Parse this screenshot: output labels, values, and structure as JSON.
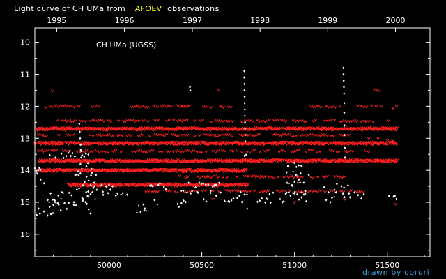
{
  "chart_data": {
    "type": "scatter",
    "title": {
      "prefix": "Light curve of CH UMa from",
      "highlight": "AFOEV",
      "suffix": "observations"
    },
    "subtitle": "CH UMa (UGSS)",
    "credit": "drawn by ooruri",
    "colors": {
      "background": "#000000",
      "axes": "#ffffff",
      "highlight": "#ffff00",
      "positive_obs": "#ffffff",
      "fainter_than_obs": "#ff2020",
      "credit": "#39a7e6"
    },
    "x_axis": {
      "label": "",
      "range": [
        49600,
        51730
      ],
      "ticks": [
        50000,
        50500,
        51000,
        51500
      ],
      "tick_labels": [
        "50000",
        "50500",
        "51000",
        "51500"
      ]
    },
    "top_axis": {
      "label": "",
      "ticks": [
        49718,
        50083,
        50449,
        50814,
        51179,
        51544
      ],
      "tick_labels": [
        "1995",
        "1996",
        "1997",
        "1998",
        "1999",
        "2000"
      ]
    },
    "y_axis": {
      "label": "",
      "inverted": true,
      "range": [
        9.55,
        16.7
      ],
      "ticks": [
        10,
        11,
        12,
        13,
        14,
        15,
        16
      ],
      "tick_labels": [
        "10",
        "11",
        "12",
        "13",
        "14",
        "15",
        "16"
      ]
    },
    "grid": false,
    "legend": "none",
    "series": [
      {
        "kind": "fainter-than",
        "marker": "v",
        "bands": [
          {
            "mag": 12.7,
            "x": [
              49610,
              51555
            ]
          },
          {
            "mag": 13.15,
            "x": [
              49600,
              51555
            ]
          },
          {
            "mag": 13.7,
            "x": [
              49620,
              51555
            ]
          },
          {
            "mag": 14.0,
            "x": [
              49620,
              50740
            ]
          },
          {
            "mag": 14.45,
            "x": [
              49780,
              50750
            ]
          }
        ],
        "clusters": [
          {
            "mag": 11.5,
            "x": [
              49680,
              49710
            ]
          },
          {
            "mag": 11.5,
            "x": [
              50580,
              50610
            ]
          },
          {
            "mag": 11.5,
            "x": [
              51420,
              51460
            ]
          },
          {
            "mag": 12.0,
            "x": [
              49660,
              49960
            ]
          },
          {
            "mag": 12.0,
            "x": [
              50120,
              50440
            ]
          },
          {
            "mag": 12.0,
            "x": [
              50510,
              50670
            ]
          },
          {
            "mag": 12.0,
            "x": [
              51090,
              51250
            ]
          },
          {
            "mag": 12.0,
            "x": [
              51310,
              51440
            ]
          },
          {
            "mag": 12.45,
            "x": [
              49720,
              51520
            ]
          },
          {
            "mag": 12.9,
            "x": [
              49620,
              51300
            ]
          },
          {
            "mag": 13.4,
            "x": [
              49620,
              51400
            ]
          },
          {
            "mag": 14.2,
            "x": [
              50380,
              51280
            ]
          },
          {
            "mag": 14.65,
            "x": [
              50200,
              51420
            ]
          }
        ],
        "points": [
          {
            "x": 51440,
            "y": 12.0
          },
          {
            "x": 51470,
            "y": 12.0
          },
          {
            "x": 51530,
            "y": 12.05
          },
          {
            "x": 51550,
            "y": 12.0
          },
          {
            "x": 50400,
            "y": 12.0
          },
          {
            "x": 50600,
            "y": 12.0
          },
          {
            "x": 51400,
            "y": 13.0
          },
          {
            "x": 51450,
            "y": 13.0
          },
          {
            "x": 51500,
            "y": 13.05
          },
          {
            "x": 51530,
            "y": 13.05
          },
          {
            "x": 51545,
            "y": 15.05
          },
          {
            "x": 51000,
            "y": 15.0
          },
          {
            "x": 50560,
            "y": 14.9
          },
          {
            "x": 51270,
            "y": 14.9
          }
        ]
      },
      {
        "kind": "positive",
        "marker": "diamond",
        "clusters": [
          {
            "mag": 14.85,
            "x": [
              49650,
              50100
            ]
          },
          {
            "mag": 14.85,
            "x": [
              50450,
              50750
            ]
          },
          {
            "mag": 14.85,
            "x": [
              50800,
              51110
            ]
          },
          {
            "mag": 14.85,
            "x": [
              51170,
              51380
            ]
          },
          {
            "mag": 14.85,
            "x": [
              51500,
              51545
            ]
          },
          {
            "mag": 14.55,
            "x": [
              49800,
              50020
            ]
          },
          {
            "mag": 14.55,
            "x": [
              50210,
              50330
            ]
          },
          {
            "mag": 14.55,
            "x": [
              50390,
              50600
            ]
          },
          {
            "mag": 14.55,
            "x": [
              50960,
              51060
            ]
          },
          {
            "mag": 14.55,
            "x": [
              51150,
              51300
            ]
          },
          {
            "mag": 15.1,
            "x": [
              49700,
              49900
            ]
          },
          {
            "mag": 15.1,
            "x": [
              50160,
              50280
            ]
          },
          {
            "mag": 15.1,
            "x": [
              50370,
              50430
            ]
          },
          {
            "mag": 14.25,
            "x": [
              49600,
              49650
            ]
          },
          {
            "mag": 14.25,
            "x": [
              49800,
              49940
            ]
          },
          {
            "mag": 14.25,
            "x": [
              51000,
              51080
            ]
          },
          {
            "mag": 13.9,
            "x": [
              49600,
              49650
            ]
          },
          {
            "mag": 13.9,
            "x": [
              49820,
              49910
            ]
          },
          {
            "mag": 13.9,
            "x": [
              50950,
              51050
            ]
          },
          {
            "mag": 13.5,
            "x": [
              49680,
              49900
            ]
          },
          {
            "mag": 13.5,
            "x": [
              50730,
              50750
            ]
          },
          {
            "mag": 15.3,
            "x": [
              49620,
              49700
            ]
          },
          {
            "mag": 15.3,
            "x": [
              50150,
              50200
            ]
          }
        ],
        "points": [
          {
            "x": 50436,
            "y": 11.4
          },
          {
            "x": 50438,
            "y": 11.5
          },
          {
            "x": 50729,
            "y": 10.9
          },
          {
            "x": 50729,
            "y": 11.1
          },
          {
            "x": 50730,
            "y": 11.3
          },
          {
            "x": 50730,
            "y": 11.5
          },
          {
            "x": 50731,
            "y": 11.7
          },
          {
            "x": 50731,
            "y": 11.9
          },
          {
            "x": 50732,
            "y": 12.1
          },
          {
            "x": 50732,
            "y": 12.3
          },
          {
            "x": 50733,
            "y": 12.5
          },
          {
            "x": 50733,
            "y": 12.7
          },
          {
            "x": 50734,
            "y": 12.9
          },
          {
            "x": 50735,
            "y": 13.1
          },
          {
            "x": 51263,
            "y": 10.8
          },
          {
            "x": 51264,
            "y": 11.0
          },
          {
            "x": 51265,
            "y": 11.2
          },
          {
            "x": 51266,
            "y": 11.4
          },
          {
            "x": 51267,
            "y": 11.6
          },
          {
            "x": 51268,
            "y": 11.9
          },
          {
            "x": 51268,
            "y": 12.2
          },
          {
            "x": 51269,
            "y": 12.6
          },
          {
            "x": 51270,
            "y": 12.9
          },
          {
            "x": 51271,
            "y": 13.3
          },
          {
            "x": 51272,
            "y": 13.6
          },
          {
            "x": 49840,
            "y": 12.55
          },
          {
            "x": 49842,
            "y": 12.8
          },
          {
            "x": 49844,
            "y": 13.0
          },
          {
            "x": 49846,
            "y": 13.2
          },
          {
            "x": 49848,
            "y": 13.4
          },
          {
            "x": 49850,
            "y": 13.6
          },
          {
            "x": 49610,
            "y": 15.4
          },
          {
            "x": 50745,
            "y": 15.2
          },
          {
            "x": 49900,
            "y": 15.35
          },
          {
            "x": 51541,
            "y": 14.8
          },
          {
            "x": 51548,
            "y": 14.9
          }
        ]
      }
    ]
  }
}
